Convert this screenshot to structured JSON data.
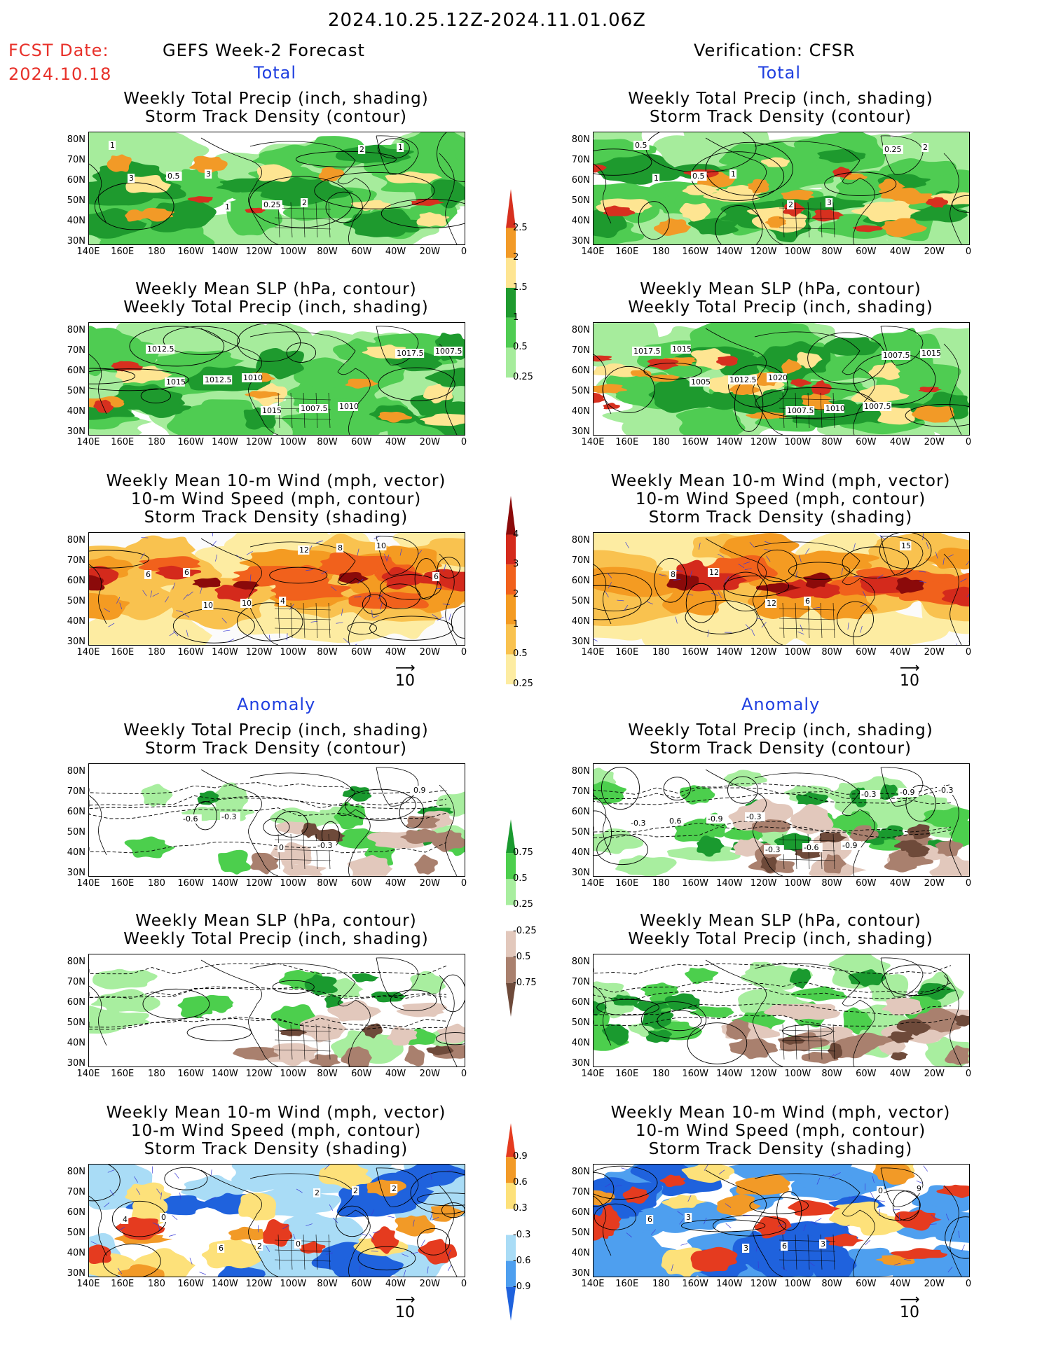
{
  "header": {
    "date_range": "2024.10.25.12Z-2024.11.01.06Z",
    "fcst_label": "FCST Date:",
    "fcst_date": "2024.10.18",
    "left_title": "GEFS Week-2 Forecast",
    "right_title": "Verification: CFSR",
    "section_total": "Total",
    "section_anomaly": "Anomaly"
  },
  "panel_titles": {
    "precip_storm": [
      "Weekly Total Precip (inch, shading)",
      "Storm Track Density (contour)"
    ],
    "slp_precip": [
      "Weekly Mean SLP (hPa, contour)",
      "Weekly Total Precip (inch, shading)"
    ],
    "wind_storm": [
      "Weekly Mean 10-m Wind (mph, vector)",
      "10-m Wind Speed (mph, contour)",
      "Storm Track Density (shading)"
    ]
  },
  "axes": {
    "lat_labels": [
      "80N",
      "70N",
      "60N",
      "50N",
      "40N",
      "30N"
    ],
    "lon_labels": [
      "140E",
      "160E",
      "180",
      "160W",
      "140W",
      "120W",
      "100W",
      "80W",
      "60W",
      "40W",
      "20W",
      "0"
    ]
  },
  "vector_ref": "10",
  "colorbars": {
    "total_precip": {
      "labels": [
        "2.5",
        "2",
        "1.5",
        "1",
        "0.5",
        "0.25"
      ],
      "colors": [
        "#d7301f",
        "#f29a27",
        "#fee592",
        "#1e9a2e",
        "#4fcc52",
        "#a6ec9c"
      ]
    },
    "total_storm": {
      "labels": [
        "4",
        "3",
        "2",
        "1",
        "0.5",
        "0.25"
      ],
      "colors": [
        "#8b0a0a",
        "#d42a1c",
        "#f1611c",
        "#f49b22",
        "#f9c24f",
        "#fdeca2"
      ]
    },
    "anom_precip": {
      "labels": [
        "0.75",
        "0.5",
        "0.25",
        "-0.25",
        "-0.5",
        "-0.75"
      ],
      "colors": [
        "#1a9a2f",
        "#4ccf4d",
        "#a8ee9f",
        "#ffffff",
        "#e2c8bc",
        "#a9806e",
        "#6e4a3a"
      ]
    },
    "anom_storm": {
      "labels": [
        "0.9",
        "0.6",
        "0.3",
        "-0.3",
        "-0.6",
        "-0.9"
      ],
      "colors": [
        "#e53b1f",
        "#f29a27",
        "#fde17a",
        "#ffffff",
        "#a9dcf6",
        "#4e9fef",
        "#1f62dd"
      ]
    }
  },
  "contour_labels": {
    "f_total_precip": [
      "1",
      "3",
      "2",
      "1",
      "0.5",
      "0.25",
      "2",
      "3",
      "1"
    ],
    "f_total_slp": [
      "1012.5",
      "1010",
      "1010",
      "1007.5",
      "1012.5",
      "1007.5",
      "1017.5",
      "1015",
      "1015"
    ],
    "f_total_wind": [
      "6",
      "4",
      "10",
      "6",
      "10",
      "8",
      "6",
      "10",
      "12"
    ],
    "f_anom_precip": [
      "-0.3",
      "-0.3",
      "0.9",
      "-0.6",
      "0"
    ],
    "f_anom_wind": [
      "0",
      "2",
      "0",
      "2",
      "2",
      "4",
      "6",
      "2"
    ],
    "v_total_precip": [
      "0.5",
      "1",
      "3",
      "2",
      "0.5",
      "2",
      "0.25",
      "1"
    ],
    "v_total_slp": [
      "1015",
      "1020",
      "1007.5",
      "1017.5",
      "1012.5",
      "1010",
      "1015",
      "1005",
      "1007.5",
      "1007.5"
    ],
    "v_total_wind": [
      "12",
      "6",
      "15",
      "8",
      "12"
    ],
    "v_anom_precip": [
      "-0.3",
      "-0.9",
      "-0.3",
      "-0.9",
      "-0.6",
      "-0.9",
      "0.6",
      "-0.3",
      "-0.3",
      "-0.3"
    ],
    "v_anom_wind": [
      "3",
      "9",
      "3",
      "6",
      "0",
      "6",
      "3"
    ]
  }
}
